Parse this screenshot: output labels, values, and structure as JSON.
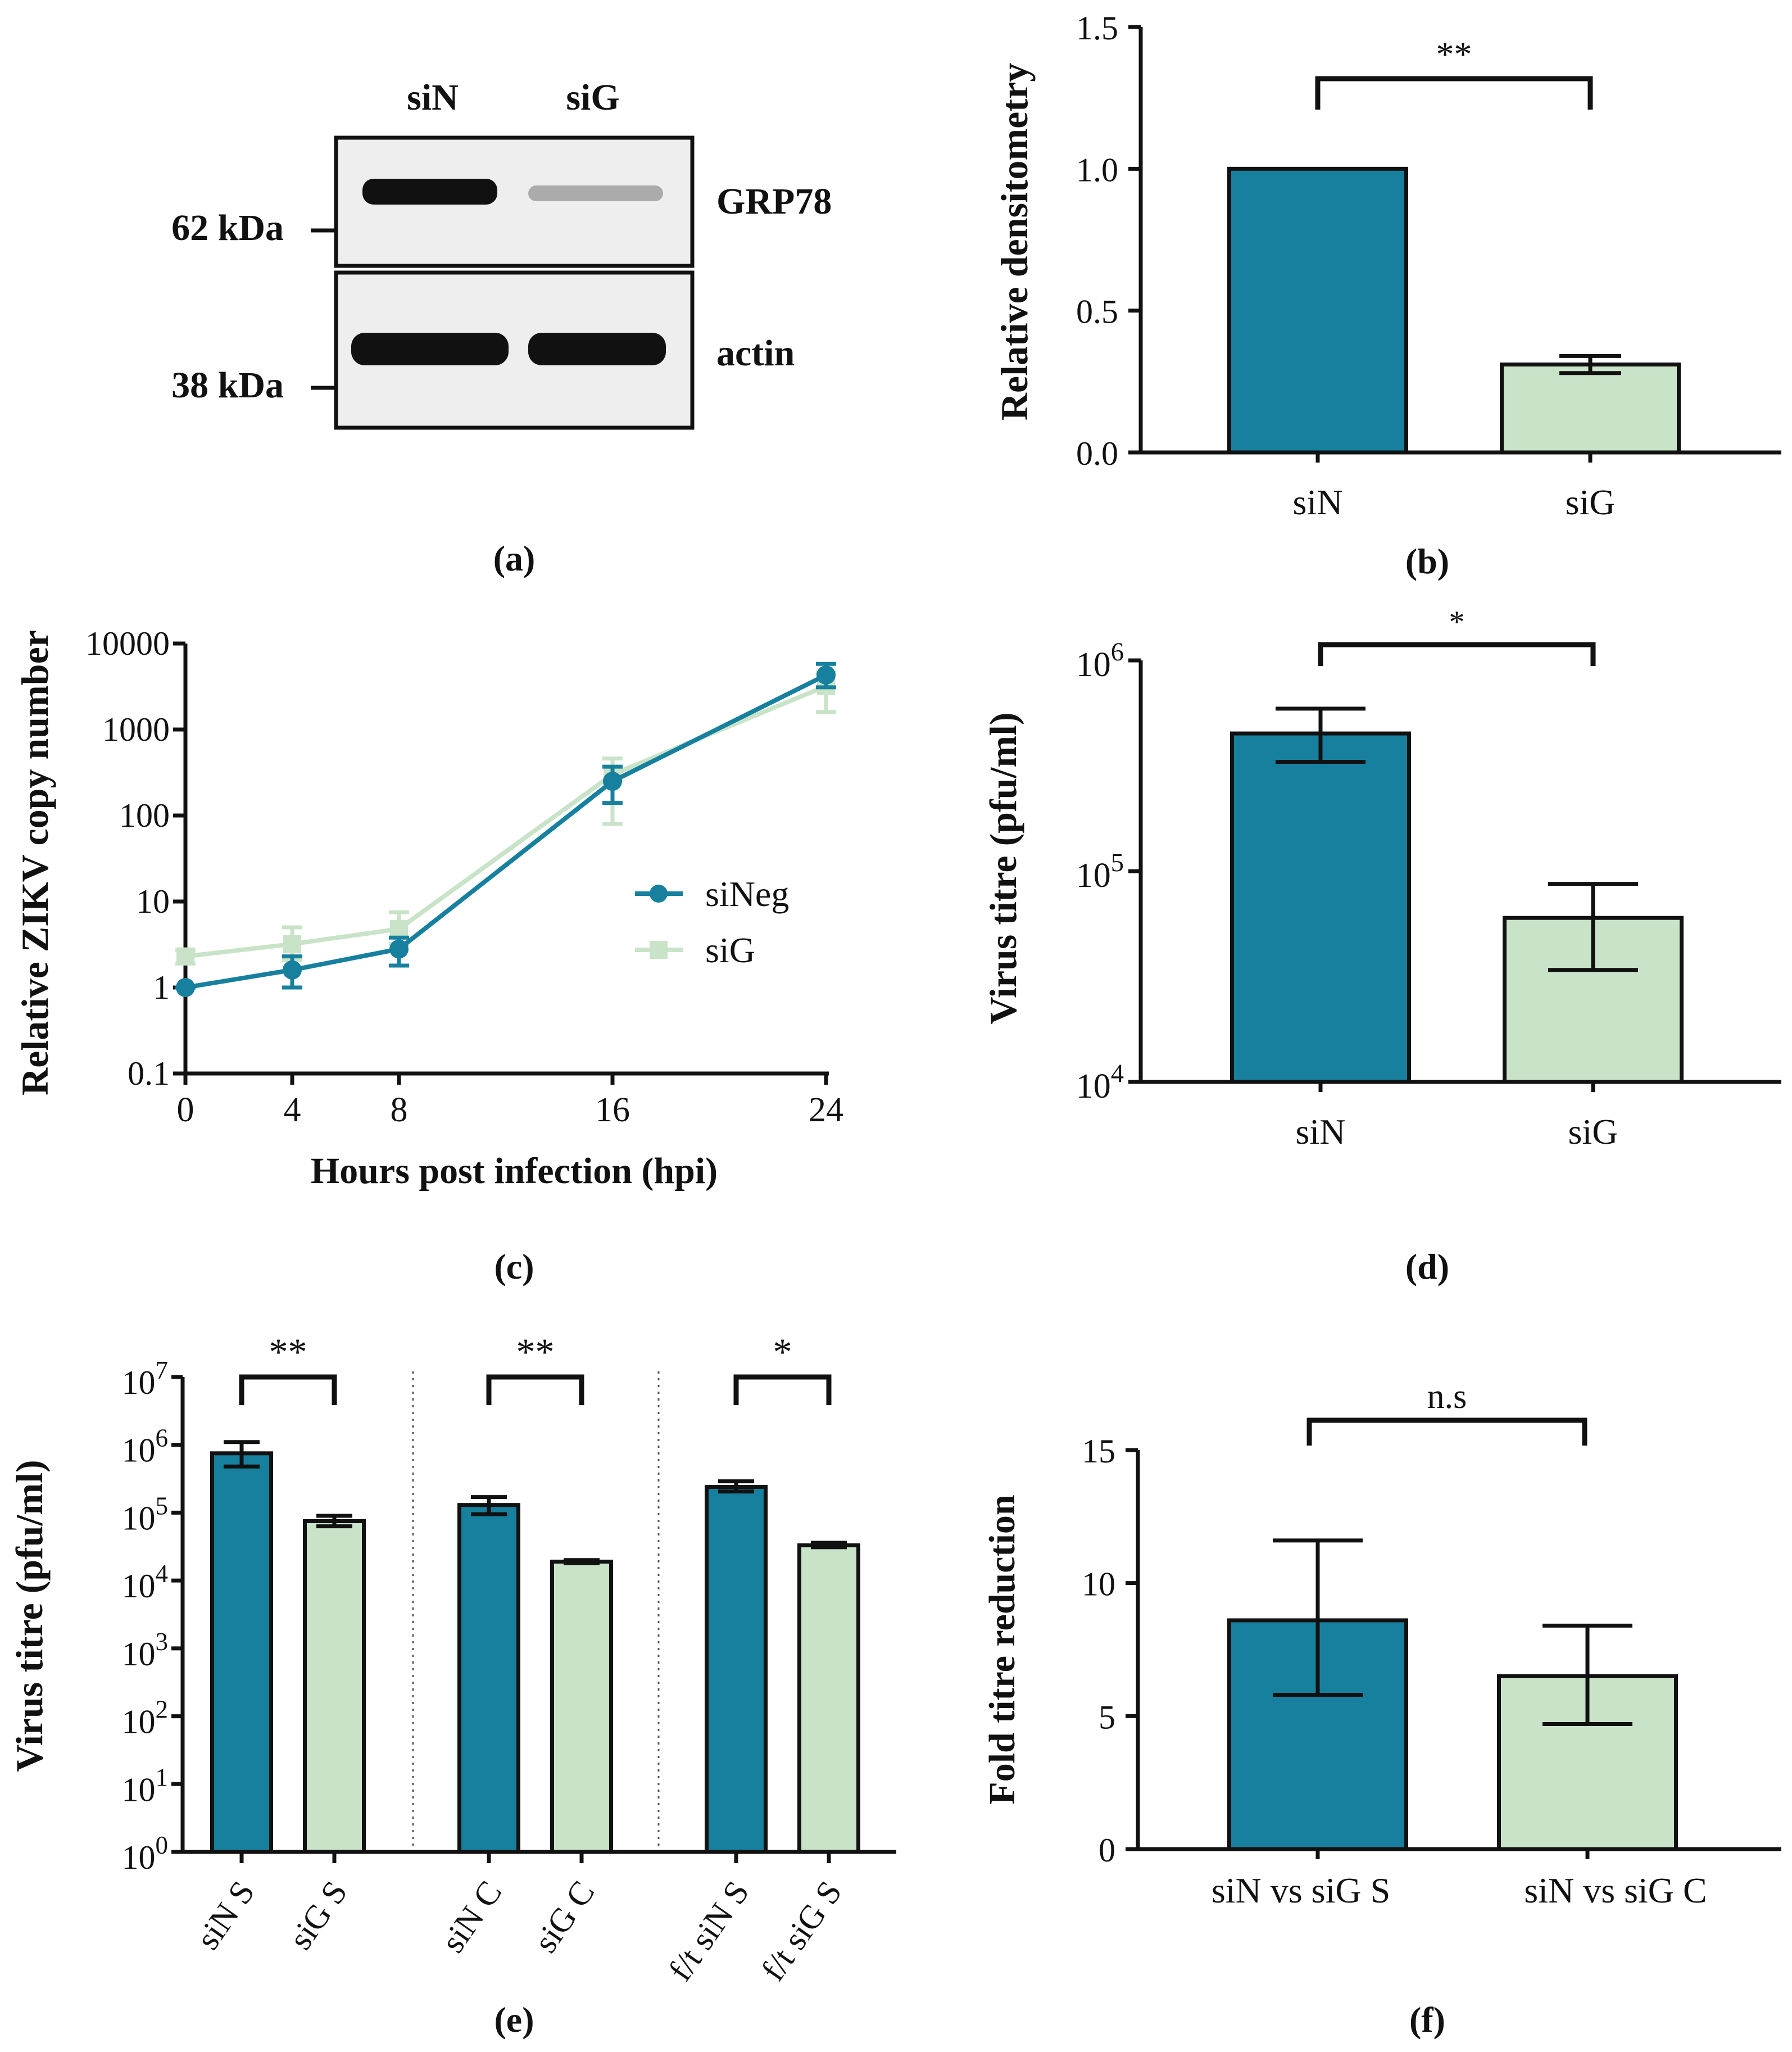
{
  "colors": {
    "siN": "#16809E",
    "siG": "#C9E3C8",
    "outline": "#111111"
  },
  "panel_captions": {
    "a": "(a)",
    "b": "(b)",
    "c": "(c)",
    "d": "(d)",
    "e": "(e)",
    "f": "(f)"
  },
  "western_blot": {
    "lanes": [
      "siN",
      "siG"
    ],
    "bands": [
      {
        "label": "GRP78",
        "marker": "62 kDa",
        "intensity": [
          1.0,
          0.3
        ]
      },
      {
        "label": "actin",
        "marker": "38 kDa",
        "intensity": [
          1.0,
          1.0
        ]
      }
    ]
  },
  "chart_data": [
    {
      "id": "b",
      "type": "bar",
      "categories": [
        "siN",
        "siG"
      ],
      "values": [
        1.0,
        0.31
      ],
      "error": [
        0,
        0.03
      ],
      "ylabel": "Relative densitometry",
      "ylim": [
        0,
        1.5
      ],
      "yticks": [
        "0.0",
        "0.5",
        "1.0",
        "1.5"
      ],
      "significance": [
        {
          "from": 0,
          "to": 1,
          "label": "**"
        }
      ]
    },
    {
      "id": "c",
      "type": "line",
      "x": [
        0,
        4,
        8,
        16,
        24
      ],
      "xticks": [
        "0",
        "4",
        "8",
        "16",
        "24"
      ],
      "series": [
        {
          "name": "siNeg",
          "values": [
            1,
            1.6,
            2.8,
            250,
            4300
          ],
          "err_low": [
            1,
            1.0,
            1.8,
            140,
            3100
          ],
          "err_high": [
            1,
            2.3,
            3.8,
            370,
            5800
          ]
        },
        {
          "name": "siG",
          "values": [
            2.3,
            3.2,
            4.8,
            300,
            3200
          ],
          "err_low": [
            1.9,
            2.1,
            3.2,
            80,
            1600
          ],
          "err_high": [
            2.7,
            5.0,
            7.5,
            460,
            4600
          ]
        }
      ],
      "xlabel": "Hours post infection (hpi)",
      "ylabel": "Relative ZIKV copy number",
      "yscale": "log",
      "ylim": [
        0.1,
        10000
      ],
      "yticks": [
        "0.1",
        "1",
        "10",
        "100",
        "1000",
        "10000"
      ]
    },
    {
      "id": "d",
      "type": "bar",
      "categories": [
        "siN",
        "siG"
      ],
      "values": [
        450000,
        60000
      ],
      "err_low": [
        330000,
        34000
      ],
      "err_high": [
        590000,
        87000
      ],
      "ylabel": "Virus titre (pfu/ml)",
      "yscale": "log",
      "ylim": [
        10000,
        1000000
      ],
      "ytick_base": [
        "10",
        "10",
        "10"
      ],
      "ytick_exp": [
        "4",
        "5",
        "6"
      ],
      "significance": [
        {
          "from": 0,
          "to": 1,
          "label": "*"
        }
      ]
    },
    {
      "id": "e",
      "type": "bar",
      "categories": [
        "siN S",
        "siG S",
        "siN C",
        "siG C",
        "f/t siN S",
        "f/t siG S"
      ],
      "values": [
        750000,
        75000,
        130000,
        19000,
        240000,
        33000
      ],
      "err_low": [
        480000,
        63000,
        95000,
        18000,
        205000,
        31000
      ],
      "err_high": [
        1100000,
        90000,
        170000,
        20000,
        290000,
        36000
      ],
      "ylabel": "Virus titre (pfu/ml)",
      "yscale": "log",
      "ylim": [
        1,
        10000000
      ],
      "ytick_base": [
        "10",
        "10",
        "10",
        "10",
        "10",
        "10",
        "10",
        "10"
      ],
      "ytick_exp": [
        "0",
        "1",
        "2",
        "3",
        "4",
        "5",
        "6",
        "7"
      ],
      "significance": [
        {
          "from": 0,
          "to": 1,
          "label": "**"
        },
        {
          "from": 2,
          "to": 3,
          "label": "**"
        },
        {
          "from": 4,
          "to": 5,
          "label": "*"
        }
      ]
    },
    {
      "id": "f",
      "type": "bar",
      "categories": [
        "siN vs siG S",
        "siN vs siG C"
      ],
      "values": [
        8.6,
        6.5
      ],
      "err_low": [
        5.8,
        4.7
      ],
      "err_high": [
        11.6,
        8.4
      ],
      "ylabel": "Fold titre reduction",
      "ylim": [
        0,
        15
      ],
      "yticks": [
        "0",
        "5",
        "10",
        "15"
      ],
      "significance": [
        {
          "from": 0,
          "to": 1,
          "label": "n.s"
        }
      ]
    }
  ]
}
